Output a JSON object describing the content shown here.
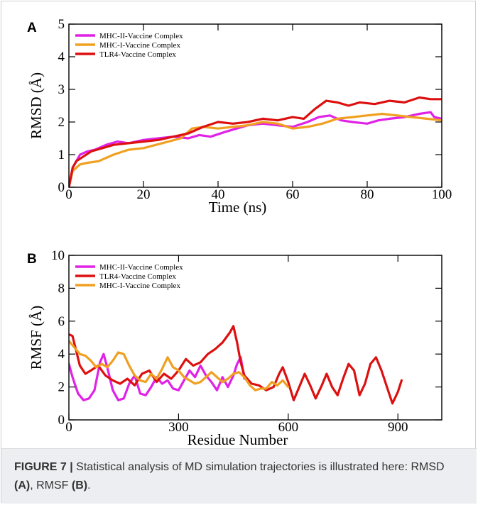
{
  "chart_data": [
    {
      "panel": "A",
      "type": "line",
      "title": "",
      "xlabel": "Time (ns)",
      "ylabel": "RMSD (Å)",
      "xlim": [
        0,
        100
      ],
      "ylim": [
        0,
        5
      ],
      "xticks": [
        0,
        20,
        40,
        60,
        80,
        100
      ],
      "yticks": [
        0,
        1,
        2,
        3,
        4,
        5
      ],
      "grid": false,
      "legend_position": "top-left",
      "series": [
        {
          "name": "MHC-II-Vaccine Complex",
          "color": "#e022e6",
          "x": [
            0,
            1,
            2,
            3,
            5,
            7,
            10,
            13,
            16,
            20,
            24,
            28,
            32,
            35,
            38,
            42,
            45,
            48,
            52,
            56,
            60,
            64,
            67,
            70,
            73,
            76,
            80,
            83,
            86,
            90,
            94,
            97,
            98,
            100
          ],
          "y": [
            0,
            0.6,
            0.8,
            1.0,
            1.1,
            1.15,
            1.3,
            1.4,
            1.35,
            1.45,
            1.5,
            1.55,
            1.5,
            1.6,
            1.55,
            1.7,
            1.8,
            1.9,
            1.95,
            1.9,
            1.85,
            2.0,
            2.15,
            2.2,
            2.05,
            2.0,
            1.95,
            2.05,
            2.1,
            2.15,
            2.25,
            2.3,
            2.15,
            2.1
          ]
        },
        {
          "name": "MHC-I-Vaccine Complex",
          "color": "#f0a020",
          "x": [
            0,
            1,
            3,
            5,
            8,
            12,
            16,
            20,
            25,
            30,
            33,
            36,
            40,
            44,
            48,
            52,
            56,
            60,
            64,
            68,
            72,
            76,
            80,
            84,
            88,
            92,
            96,
            100
          ],
          "y": [
            0,
            0.5,
            0.7,
            0.75,
            0.8,
            1.0,
            1.15,
            1.2,
            1.35,
            1.5,
            1.8,
            1.85,
            1.8,
            1.85,
            1.9,
            2.0,
            1.95,
            1.8,
            1.85,
            1.95,
            2.1,
            2.15,
            2.2,
            2.25,
            2.2,
            2.15,
            2.1,
            2.05
          ]
        },
        {
          "name": "TLR4-Vaccine Complex",
          "color": "#dd1010",
          "x": [
            0,
            1,
            2,
            4,
            6,
            9,
            12,
            16,
            20,
            24,
            28,
            32,
            36,
            40,
            44,
            48,
            52,
            56,
            60,
            63,
            66,
            69,
            72,
            75,
            78,
            82,
            86,
            90,
            94,
            97,
            100
          ],
          "y": [
            0,
            0.6,
            0.8,
            0.95,
            1.1,
            1.2,
            1.3,
            1.35,
            1.4,
            1.45,
            1.55,
            1.65,
            1.85,
            2.0,
            1.95,
            2.0,
            2.1,
            2.05,
            2.15,
            2.1,
            2.4,
            2.65,
            2.6,
            2.5,
            2.6,
            2.55,
            2.65,
            2.6,
            2.75,
            2.7,
            2.7
          ]
        }
      ]
    },
    {
      "panel": "B",
      "type": "line",
      "title": "",
      "xlabel": "Residue Number",
      "ylabel": "RMSF (Å)",
      "xlim": [
        0,
        1020
      ],
      "ylim": [
        0,
        10
      ],
      "xticks": [
        0,
        300,
        600,
        900
      ],
      "yticks": [
        0,
        2,
        4,
        6,
        8,
        10
      ],
      "grid": false,
      "legend_position": "top-left",
      "series": [
        {
          "name": "MHC-II-Vaccine Complex",
          "color": "#e022e6",
          "x": [
            0,
            10,
            25,
            40,
            55,
            70,
            85,
            95,
            105,
            120,
            135,
            150,
            165,
            180,
            195,
            210,
            225,
            240,
            255,
            270,
            285,
            300,
            315,
            330,
            345,
            360,
            375,
            390,
            405,
            420,
            435,
            450,
            460,
            470,
            480
          ],
          "y": [
            3.4,
            2.6,
            1.6,
            1.2,
            1.3,
            1.8,
            3.5,
            4.0,
            3.2,
            1.8,
            1.2,
            1.3,
            2.2,
            2.7,
            1.6,
            1.5,
            2.0,
            2.6,
            2.2,
            2.4,
            1.9,
            1.8,
            2.4,
            3.0,
            2.6,
            3.3,
            2.7,
            2.3,
            1.8,
            2.6,
            2.0,
            2.7,
            3.4,
            3.8,
            2.5
          ]
        },
        {
          "name": "TLR4-Vaccine Complex",
          "color": "#dd1010",
          "x": [
            0,
            10,
            20,
            30,
            45,
            60,
            80,
            100,
            120,
            140,
            160,
            180,
            200,
            220,
            240,
            260,
            280,
            300,
            320,
            340,
            360,
            380,
            400,
            420,
            440,
            450,
            460,
            470,
            480,
            500,
            520,
            540,
            560,
            575,
            585,
            600,
            615,
            630,
            645,
            660,
            675,
            690,
            705,
            720,
            735,
            750,
            765,
            780,
            795,
            810,
            825,
            840,
            855,
            870,
            885,
            900,
            910
          ],
          "y": [
            5.2,
            5.1,
            4.2,
            3.3,
            2.8,
            3.0,
            3.3,
            2.7,
            2.4,
            2.2,
            2.5,
            2.1,
            2.8,
            3.0,
            2.3,
            2.8,
            2.5,
            3.0,
            3.7,
            3.3,
            3.5,
            4.0,
            4.3,
            4.7,
            5.3,
            5.7,
            4.7,
            3.5,
            2.7,
            2.2,
            2.1,
            1.8,
            2.0,
            2.8,
            3.2,
            2.3,
            1.2,
            2.0,
            2.8,
            2.1,
            1.3,
            2.0,
            2.8,
            2.0,
            1.5,
            2.5,
            3.4,
            3.0,
            1.5,
            2.2,
            3.4,
            3.8,
            3.0,
            2.0,
            1.0,
            1.7,
            2.4
          ]
        },
        {
          "name": "MHC-I-Vaccine Complex",
          "color": "#f0a020",
          "x": [
            0,
            15,
            30,
            45,
            60,
            75,
            90,
            105,
            120,
            135,
            150,
            165,
            180,
            195,
            210,
            225,
            240,
            255,
            270,
            285,
            300,
            315,
            330,
            345,
            360,
            375,
            390,
            405,
            420,
            435,
            450,
            465,
            480,
            495,
            510,
            525,
            540,
            555,
            570,
            585,
            600
          ],
          "y": [
            4.8,
            4.4,
            4.0,
            3.9,
            3.6,
            3.2,
            3.4,
            3.2,
            3.6,
            4.1,
            4.0,
            3.3,
            2.7,
            2.4,
            2.3,
            2.8,
            2.5,
            3.1,
            3.8,
            3.2,
            3.0,
            2.6,
            2.4,
            2.2,
            2.3,
            2.6,
            2.9,
            2.6,
            2.3,
            2.5,
            2.8,
            2.9,
            2.6,
            2.1,
            1.8,
            1.9,
            1.9,
            2.3,
            2.1,
            2.4,
            2.0
          ]
        }
      ]
    }
  ],
  "caption": {
    "figure_label": "FIGURE 7 |",
    "text_before_a": " Statistical analysis of MD simulation trajectories is illustrated here: RMSD ",
    "ref_a": "(A)",
    "text_between": ", RMSF ",
    "ref_b": "(B)",
    "text_after": "."
  }
}
